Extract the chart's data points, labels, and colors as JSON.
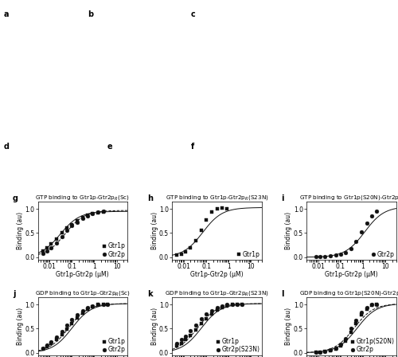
{
  "panels": [
    {
      "label": "g",
      "title": "GTP binding to Gtr1p-Gtr2p$_R$(Sc)",
      "xlabel": "Gtr1p-Gtr2p (μM)",
      "ylabel": "Binding (au)",
      "xlim": [
        0.003,
        30
      ],
      "ylim": [
        -0.05,
        1.15
      ],
      "yticks": [
        0.0,
        0.5,
        1.0
      ],
      "xtick_labels": [
        "0.01",
        "0.1",
        "1",
        "10"
      ],
      "xtick_vals": [
        0.01,
        0.1,
        1,
        10
      ],
      "series": [
        {
          "name": "Gtr1p",
          "marker": "s",
          "line": "solid",
          "x": [
            0.005,
            0.008,
            0.012,
            0.02,
            0.035,
            0.06,
            0.1,
            0.17,
            0.3,
            0.5,
            0.85,
            1.5,
            2.5
          ],
          "y": [
            0.13,
            0.2,
            0.28,
            0.38,
            0.5,
            0.6,
            0.68,
            0.75,
            0.82,
            0.87,
            0.9,
            0.92,
            0.93
          ],
          "kd": 0.03,
          "ymax": 0.95
        },
        {
          "name": "Gtr2p",
          "marker": "o",
          "line": "dashed",
          "x": [
            0.005,
            0.008,
            0.012,
            0.02,
            0.035,
            0.06,
            0.1,
            0.17,
            0.3,
            0.5,
            0.85,
            1.5,
            2.5
          ],
          "y": [
            0.08,
            0.13,
            0.2,
            0.3,
            0.42,
            0.55,
            0.65,
            0.73,
            0.8,
            0.86,
            0.9,
            0.93,
            0.95
          ],
          "kd": 0.05,
          "ymax": 0.97
        }
      ]
    },
    {
      "label": "h",
      "title": "GTP binding to Gtr1p-Gtr2p$_R$(S23N)",
      "xlabel": "Gtr1p-Gtr2p (μM)",
      "ylabel": "Binding (au)",
      "xlim": [
        0.003,
        30
      ],
      "ylim": [
        -0.05,
        1.15
      ],
      "yticks": [
        0.0,
        0.5,
        1.0
      ],
      "xtick_labels": [
        "0.01",
        "0.1",
        "1",
        "10"
      ],
      "xtick_vals": [
        0.01,
        0.1,
        1,
        10
      ],
      "series": [
        {
          "name": "Gtr1p",
          "marker": "s",
          "line": "solid",
          "x": [
            0.005,
            0.008,
            0.012,
            0.02,
            0.035,
            0.06,
            0.1,
            0.17,
            0.3,
            0.5,
            0.85
          ],
          "y": [
            0.04,
            0.07,
            0.12,
            0.2,
            0.35,
            0.56,
            0.78,
            0.93,
            1.0,
            1.02,
            1.0
          ],
          "kd": 0.07,
          "ymax": 1.03
        }
      ]
    },
    {
      "label": "i",
      "title": "GTP binding to Gtr1p(S20N)-Gtr2p$_R$",
      "xlabel": "Gtr1p-Gtr2p (μM)",
      "ylabel": "Binding (au)",
      "xlim": [
        0.003,
        30
      ],
      "ylim": [
        -0.05,
        1.15
      ],
      "yticks": [
        0.0,
        0.5,
        1.0
      ],
      "xtick_labels": [
        "0.01",
        "0.1",
        "1",
        "10"
      ],
      "xtick_vals": [
        0.01,
        0.1,
        1,
        10
      ],
      "series": [
        {
          "name": "Gtr2p",
          "marker": "o",
          "line": "solid",
          "x": [
            0.008,
            0.012,
            0.02,
            0.035,
            0.06,
            0.1,
            0.17,
            0.3,
            0.5,
            0.85,
            1.5,
            2.5,
            4.0
          ],
          "y": [
            0.01,
            0.01,
            0.02,
            0.03,
            0.04,
            0.06,
            0.1,
            0.18,
            0.32,
            0.52,
            0.7,
            0.85,
            0.95
          ],
          "kd": 1.2,
          "ymax": 1.05
        }
      ]
    },
    {
      "label": "j",
      "title": "GDP binding to Gtr1p-Gtr2p$_R$(Sc)",
      "xlabel": "Gtr1p-Gtr2p (μM)",
      "ylabel": "Binding (au)",
      "xlim": [
        0.003,
        30
      ],
      "ylim": [
        -0.05,
        1.15
      ],
      "yticks": [
        0.0,
        0.5,
        1.0
      ],
      "xtick_labels": [
        "0.01",
        "0.1",
        "1",
        "10"
      ],
      "xtick_vals": [
        0.01,
        0.1,
        1,
        10
      ],
      "series": [
        {
          "name": "Gtr1p",
          "marker": "s",
          "line": "solid",
          "x": [
            0.005,
            0.008,
            0.012,
            0.02,
            0.035,
            0.06,
            0.1,
            0.17,
            0.3,
            0.5,
            0.85,
            1.5,
            2.5,
            4.0
          ],
          "y": [
            0.08,
            0.13,
            0.19,
            0.27,
            0.37,
            0.49,
            0.61,
            0.72,
            0.82,
            0.9,
            0.96,
            1.0,
            1.01,
            1.01
          ],
          "kd": 0.1,
          "ymax": 1.02
        },
        {
          "name": "Gtr2p",
          "marker": "o",
          "line": "dashed",
          "x": [
            0.005,
            0.008,
            0.012,
            0.02,
            0.035,
            0.06,
            0.1,
            0.17,
            0.3,
            0.5,
            0.85,
            1.5,
            2.5,
            4.0
          ],
          "y": [
            0.1,
            0.16,
            0.23,
            0.32,
            0.44,
            0.57,
            0.69,
            0.79,
            0.87,
            0.93,
            0.97,
            1.0,
            1.01,
            1.01
          ],
          "kd": 0.07,
          "ymax": 1.02
        }
      ]
    },
    {
      "label": "k",
      "title": "GDP binding to Gtr1p-Gtr2p$_R$(S23N)",
      "xlabel": "Gtr1p-Gtr2p (μM)",
      "ylabel": "Binding (au)",
      "xlim": [
        0.003,
        30
      ],
      "ylim": [
        -0.05,
        1.15
      ],
      "yticks": [
        0.0,
        0.5,
        1.0
      ],
      "xtick_labels": [
        "0.01",
        "0.1",
        "1",
        "10"
      ],
      "xtick_vals": [
        0.01,
        0.1,
        1,
        10
      ],
      "series": [
        {
          "name": "Gtr1p",
          "marker": "s",
          "line": "solid",
          "x": [
            0.005,
            0.008,
            0.012,
            0.02,
            0.035,
            0.06,
            0.1,
            0.17,
            0.3,
            0.5,
            0.85,
            1.5,
            2.5,
            4.0
          ],
          "y": [
            0.15,
            0.2,
            0.27,
            0.36,
            0.48,
            0.6,
            0.71,
            0.8,
            0.88,
            0.93,
            0.97,
            1.0,
            1.01,
            1.01
          ],
          "kd": 0.06,
          "ymax": 1.02
        },
        {
          "name": "Gtr2p(S23N)",
          "marker": "o",
          "line": "dashed",
          "x": [
            0.005,
            0.008,
            0.012,
            0.02,
            0.035,
            0.06,
            0.1,
            0.17,
            0.3,
            0.5,
            0.85,
            1.5,
            2.5,
            4.0
          ],
          "y": [
            0.2,
            0.27,
            0.35,
            0.46,
            0.58,
            0.7,
            0.8,
            0.87,
            0.93,
            0.97,
            1.0,
            1.01,
            1.01,
            1.01
          ],
          "kd": 0.04,
          "ymax": 1.02
        }
      ]
    },
    {
      "label": "l",
      "title": "GDP binding to Gtr1p(S20N)-Gtr2p$_R$",
      "xlabel": "Gtr1p-Gtr2p (μM)",
      "ylabel": "Binding (au)",
      "xlim": [
        0.003,
        30
      ],
      "ylim": [
        -0.05,
        1.15
      ],
      "yticks": [
        0.0,
        0.5,
        1.0
      ],
      "xtick_labels": [
        "0.01",
        "0.1",
        "1",
        "10"
      ],
      "xtick_vals": [
        0.01,
        0.1,
        1,
        10
      ],
      "series": [
        {
          "name": "Gtr1p(S20N)",
          "marker": "s",
          "line": "solid",
          "x": [
            0.008,
            0.012,
            0.02,
            0.035,
            0.06,
            0.1,
            0.17,
            0.3,
            0.5,
            0.85,
            1.5,
            2.5,
            4.0
          ],
          "y": [
            0.01,
            0.02,
            0.03,
            0.05,
            0.08,
            0.14,
            0.24,
            0.42,
            0.6,
            0.78,
            0.91,
            0.98,
            1.0
          ],
          "kd": 0.55,
          "ymax": 1.02
        },
        {
          "name": "Gtr2p",
          "marker": "o",
          "line": "dashed",
          "x": [
            0.008,
            0.012,
            0.02,
            0.035,
            0.06,
            0.1,
            0.17,
            0.3,
            0.5,
            0.85,
            1.5,
            2.5,
            4.0
          ],
          "y": [
            0.01,
            0.02,
            0.03,
            0.06,
            0.1,
            0.18,
            0.3,
            0.5,
            0.68,
            0.84,
            0.94,
            1.0,
            1.01
          ],
          "kd": 0.4,
          "ymax": 1.02
        }
      ]
    }
  ],
  "marker_color": "#111111",
  "line_color": "#111111",
  "marker_size": 3.5,
  "label_fontsize": 5.5,
  "tick_fontsize": 5.5,
  "title_fontsize": 5.2,
  "panel_label_fontsize": 7
}
